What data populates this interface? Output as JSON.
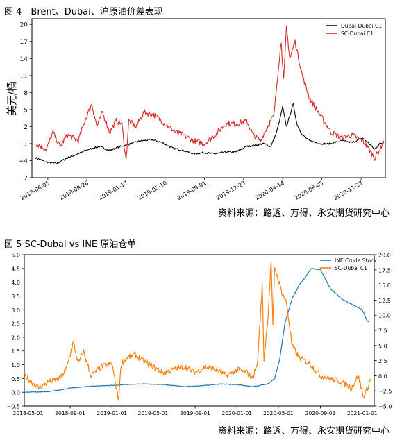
{
  "figures": [
    {
      "title": "图 4　Brent、Dubai、沪原油价差表现",
      "source": "资料来源：路透、万得、永安期货研究中心"
    },
    {
      "title": "图 5 SC-Dubai vs INE 原油仓单",
      "source": "资料来源：路透、万得、永安期货研究中心"
    }
  ],
  "chart_data": [
    {
      "type": "line",
      "title": "",
      "ylabel": "美元/桶",
      "ylim": [
        -7,
        21
      ],
      "yticks": [
        -7,
        -4,
        -1,
        2,
        5,
        8,
        11,
        14,
        17,
        20
      ],
      "xlim": [
        "2018-04-20",
        "2021-02-05"
      ],
      "xtick_labels": [
        "2018-06-05",
        "2018-09-26",
        "2019-01-17",
        "2019-05-10",
        "2019-09-01",
        "2019-12-23",
        "2020-04-14",
        "2020-08-05",
        "2020-11-27"
      ],
      "legend": "top-right",
      "series": [
        {
          "name": "Dubai-Dubai C1",
          "color": "#000000",
          "points": [
            [
              "2018-05-01",
              -3.5
            ],
            [
              "2018-06-01",
              -4.3
            ],
            [
              "2018-07-01",
              -4.5
            ],
            [
              "2018-08-01",
              -3.5
            ],
            [
              "2018-09-01",
              -2.8
            ],
            [
              "2018-10-01",
              -2.0
            ],
            [
              "2018-11-01",
              -1.5
            ],
            [
              "2018-12-01",
              -2.2
            ],
            [
              "2019-01-01",
              -1.5
            ],
            [
              "2019-02-01",
              -1.0
            ],
            [
              "2019-03-01",
              -0.5
            ],
            [
              "2019-04-01",
              -0.3
            ],
            [
              "2019-05-01",
              -0.8
            ],
            [
              "2019-06-01",
              -1.8
            ],
            [
              "2019-07-01",
              -2.2
            ],
            [
              "2019-08-01",
              -2.8
            ],
            [
              "2019-09-01",
              -2.6
            ],
            [
              "2019-10-01",
              -2.8
            ],
            [
              "2019-11-01",
              -2.5
            ],
            [
              "2019-12-01",
              -2.5
            ],
            [
              "2020-01-01",
              -1.5
            ],
            [
              "2020-02-01",
              -1.2
            ],
            [
              "2020-02-20",
              -1.0
            ],
            [
              "2020-03-10",
              -1.5
            ],
            [
              "2020-03-25",
              0.5
            ],
            [
              "2020-04-05",
              3.0
            ],
            [
              "2020-04-14",
              5.5
            ],
            [
              "2020-04-25",
              2.0
            ],
            [
              "2020-05-05",
              4.0
            ],
            [
              "2020-05-15",
              6.0
            ],
            [
              "2020-05-25",
              2.5
            ],
            [
              "2020-06-10",
              0.5
            ],
            [
              "2020-07-01",
              -0.5
            ],
            [
              "2020-08-01",
              -1.0
            ],
            [
              "2020-09-01",
              -1.0
            ],
            [
              "2020-10-01",
              -0.5
            ],
            [
              "2020-11-01",
              -0.8
            ],
            [
              "2020-12-01",
              0.0
            ],
            [
              "2020-12-20",
              -1.0
            ],
            [
              "2021-01-05",
              -2.0
            ],
            [
              "2021-01-20",
              -1.0
            ],
            [
              "2021-01-31",
              -0.8
            ]
          ]
        },
        {
          "name": "SC-Dubai C1",
          "color": "#d62728",
          "points": [
            [
              "2018-05-01",
              -1.0
            ],
            [
              "2018-06-01",
              -2.0
            ],
            [
              "2018-06-20",
              1.0
            ],
            [
              "2018-07-10",
              -1.5
            ],
            [
              "2018-08-01",
              0.5
            ],
            [
              "2018-09-01",
              -0.5
            ],
            [
              "2018-09-20",
              3.0
            ],
            [
              "2018-10-10",
              6.0
            ],
            [
              "2018-10-25",
              2.0
            ],
            [
              "2018-11-10",
              4.5
            ],
            [
              "2018-12-01",
              1.0
            ],
            [
              "2018-12-20",
              3.0
            ],
            [
              "2019-01-05",
              2.5
            ],
            [
              "2019-01-17",
              -4.0
            ],
            [
              "2019-01-25",
              3.0
            ],
            [
              "2019-02-15",
              2.0
            ],
            [
              "2019-03-10",
              4.5
            ],
            [
              "2019-04-10",
              4.0
            ],
            [
              "2019-05-10",
              2.5
            ],
            [
              "2019-06-10",
              1.0
            ],
            [
              "2019-07-01",
              0.5
            ],
            [
              "2019-08-01",
              -0.5
            ],
            [
              "2019-09-01",
              -1.0
            ],
            [
              "2019-10-01",
              0.5
            ],
            [
              "2019-11-01",
              2.5
            ],
            [
              "2019-12-01",
              2.5
            ],
            [
              "2020-01-01",
              3.0
            ],
            [
              "2020-01-20",
              0.5
            ],
            [
              "2020-02-10",
              -0.5
            ],
            [
              "2020-03-01",
              2.0
            ],
            [
              "2020-03-20",
              4.0
            ],
            [
              "2020-04-01",
              12.0
            ],
            [
              "2020-04-10",
              17.0
            ],
            [
              "2020-04-17",
              10.0
            ],
            [
              "2020-04-25",
              19.5
            ],
            [
              "2020-05-05",
              14.0
            ],
            [
              "2020-05-20",
              17.0
            ],
            [
              "2020-06-10",
              11.0
            ],
            [
              "2020-07-01",
              7.0
            ],
            [
              "2020-08-01",
              4.0
            ],
            [
              "2020-09-01",
              1.0
            ],
            [
              "2020-10-01",
              0.0
            ],
            [
              "2020-11-01",
              0.5
            ],
            [
              "2020-12-01",
              -0.5
            ],
            [
              "2020-12-20",
              -2.0
            ],
            [
              "2021-01-05",
              -3.5
            ],
            [
              "2021-01-20",
              -2.0
            ],
            [
              "2021-01-31",
              -0.5
            ]
          ]
        }
      ]
    },
    {
      "type": "line",
      "title": "",
      "ylim_left": [
        -0.5,
        5.0
      ],
      "yticks_left": [
        -0.5,
        0.0,
        0.5,
        1.0,
        1.5,
        2.0,
        2.5,
        3.0,
        3.5,
        4.0,
        4.5,
        5.0
      ],
      "ylim_right": [
        -5.0,
        20.0
      ],
      "yticks_right": [
        -5.0,
        -2.5,
        0.0,
        2.5,
        5.0,
        7.5,
        10.0,
        12.5,
        15.0,
        17.5,
        20.0
      ],
      "xlim": [
        "2018-04-20",
        "2021-02-05"
      ],
      "xtick_labels": [
        "2018-05-01",
        "2018-09-01",
        "2019-01-01",
        "2019-05-01",
        "2019-09-01",
        "2020-01-01",
        "2020-05-01",
        "2020-09-01",
        "2021-01-01"
      ],
      "legend": "top-right",
      "series": [
        {
          "name": "INE Crude Stock",
          "axis": "left",
          "color": "#1f77b4",
          "points": [
            [
              "2018-04-20",
              0.0
            ],
            [
              "2018-07-01",
              0.02
            ],
            [
              "2018-09-01",
              0.15
            ],
            [
              "2018-11-01",
              0.22
            ],
            [
              "2019-01-01",
              0.25
            ],
            [
              "2019-02-15",
              0.28
            ],
            [
              "2019-04-01",
              0.3
            ],
            [
              "2019-06-01",
              0.28
            ],
            [
              "2019-08-01",
              0.2
            ],
            [
              "2019-10-01",
              0.25
            ],
            [
              "2019-11-15",
              0.3
            ],
            [
              "2020-01-01",
              0.28
            ],
            [
              "2020-02-15",
              0.2
            ],
            [
              "2020-04-01",
              0.3
            ],
            [
              "2020-04-20",
              0.5
            ],
            [
              "2020-05-05",
              1.2
            ],
            [
              "2020-05-20",
              2.5
            ],
            [
              "2020-06-10",
              3.4
            ],
            [
              "2020-07-01",
              3.9
            ],
            [
              "2020-07-20",
              4.2
            ],
            [
              "2020-08-05",
              4.5
            ],
            [
              "2020-09-01",
              4.45
            ],
            [
              "2020-10-01",
              3.75
            ],
            [
              "2020-11-01",
              3.4
            ],
            [
              "2020-12-01",
              3.2
            ],
            [
              "2021-01-01",
              3.0
            ],
            [
              "2021-01-15",
              2.6
            ],
            [
              "2021-01-20",
              2.55
            ]
          ]
        },
        {
          "name": "SC-Dubai C1",
          "axis": "right",
          "color": "#ff7f0e",
          "points": [
            [
              "2018-04-20",
              0.0
            ],
            [
              "2018-06-01",
              -2.0
            ],
            [
              "2018-07-01",
              -1.0
            ],
            [
              "2018-08-01",
              -0.5
            ],
            [
              "2018-08-20",
              1.0
            ],
            [
              "2018-09-10",
              5.5
            ],
            [
              "2018-09-25",
              2.0
            ],
            [
              "2018-10-10",
              4.0
            ],
            [
              "2018-11-01",
              0.0
            ],
            [
              "2018-12-01",
              1.5
            ],
            [
              "2019-01-01",
              2.0
            ],
            [
              "2019-01-20",
              -4.0
            ],
            [
              "2019-01-28",
              2.0
            ],
            [
              "2019-02-15",
              3.0
            ],
            [
              "2019-03-10",
              3.5
            ],
            [
              "2019-04-01",
              2.5
            ],
            [
              "2019-05-01",
              1.5
            ],
            [
              "2019-06-01",
              0.5
            ],
            [
              "2019-07-01",
              1.0
            ],
            [
              "2019-08-01",
              1.5
            ],
            [
              "2019-09-01",
              0.5
            ],
            [
              "2019-10-01",
              1.5
            ],
            [
              "2019-11-01",
              1.0
            ],
            [
              "2019-12-01",
              0.0
            ],
            [
              "2020-01-01",
              1.0
            ],
            [
              "2020-02-01",
              0.5
            ],
            [
              "2020-02-15",
              -0.5
            ],
            [
              "2020-03-01",
              2.0
            ],
            [
              "2020-03-15",
              15.0
            ],
            [
              "2020-03-20",
              2.5
            ],
            [
              "2020-04-01",
              10.0
            ],
            [
              "2020-04-10",
              19.0
            ],
            [
              "2020-04-15",
              8.0
            ],
            [
              "2020-04-20",
              18.0
            ],
            [
              "2020-05-10",
              14.0
            ],
            [
              "2020-05-25",
              12.0
            ],
            [
              "2020-06-10",
              5.0
            ],
            [
              "2020-07-01",
              3.0
            ],
            [
              "2020-08-01",
              2.0
            ],
            [
              "2020-09-01",
              0.0
            ],
            [
              "2020-10-01",
              -0.5
            ],
            [
              "2020-11-01",
              -1.0
            ],
            [
              "2020-12-01",
              -2.0
            ],
            [
              "2020-12-20",
              0.0
            ],
            [
              "2021-01-05",
              -3.5
            ],
            [
              "2021-01-20",
              -1.5
            ],
            [
              "2021-01-25",
              -0.5
            ]
          ]
        }
      ]
    }
  ]
}
